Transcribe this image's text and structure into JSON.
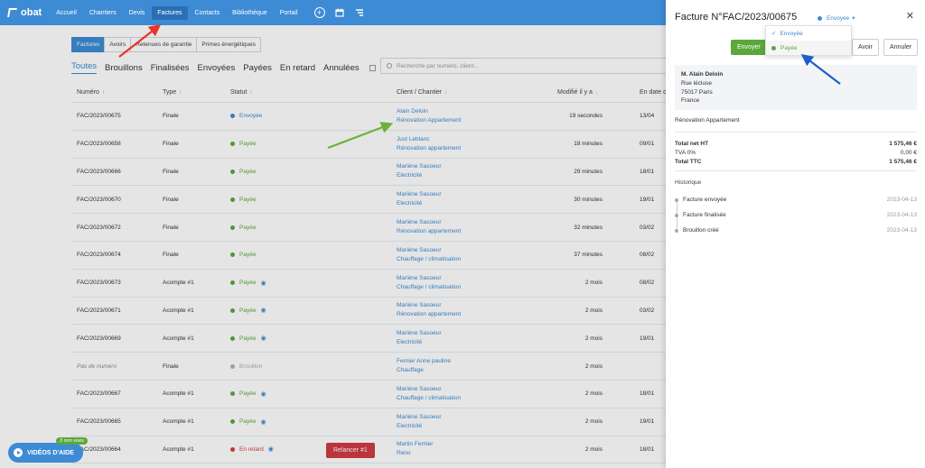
{
  "nav": {
    "logo": "obat",
    "items": [
      "Accueil",
      "Chantiers",
      "Devis",
      "Factures",
      "Contacts",
      "Bibliothèque",
      "Portail"
    ],
    "active_index": 3,
    "icons": [
      "plus-circle-icon",
      "calendar-icon",
      "tasks-icon"
    ]
  },
  "subtabs": [
    {
      "label": "Factures",
      "active": true
    },
    {
      "label": "Avoirs",
      "active": false
    },
    {
      "label": "Retenues de garantie",
      "active": false
    },
    {
      "label": "Primes énergétiques",
      "active": false
    }
  ],
  "filters": [
    "Toutes",
    "Brouillons",
    "Finalisées",
    "Envoyées",
    "Payées",
    "En retard",
    "Annulées"
  ],
  "search": {
    "placeholder": "Recherche par numéro, client..."
  },
  "table": {
    "headers": {
      "numero": "Numéro",
      "type": "Type",
      "statut": "Statut",
      "client": "Client / Chantier",
      "modifie": "Modifié il y a",
      "date": "En date d"
    },
    "rows": [
      {
        "numero": "FAC/2023/00675",
        "type": "Finale",
        "statut": "Envoyée",
        "status_color": "#3d8bd4",
        "eye": false,
        "client": "Alain Deloin",
        "chantier": "Rénovation Appartement",
        "modifie": "19 secondes",
        "date": "13/04"
      },
      {
        "numero": "FAC/2023/00658",
        "type": "Finale",
        "statut": "Payée",
        "status_color": "#5aa83a",
        "eye": false,
        "client": "Just Leblanc",
        "chantier": "Rénovation appartement",
        "modifie": "18 minutes",
        "date": "09/01"
      },
      {
        "numero": "FAC/2023/00666",
        "type": "Finale",
        "statut": "Payée",
        "status_color": "#5aa83a",
        "eye": false,
        "client": "Mariène Sasoeur",
        "chantier": "Electricité",
        "modifie": "29 minutes",
        "date": "18/01"
      },
      {
        "numero": "FAC/2023/00670",
        "type": "Finale",
        "statut": "Payée",
        "status_color": "#5aa83a",
        "eye": false,
        "client": "Mariène Sasoeur",
        "chantier": "Electricité",
        "modifie": "30 minutes",
        "date": "19/01"
      },
      {
        "numero": "FAC/2023/00672",
        "type": "Finale",
        "statut": "Payée",
        "status_color": "#5aa83a",
        "eye": false,
        "client": "Mariène Sasoeur",
        "chantier": "Rénovation appartement",
        "modifie": "32 minutes",
        "date": "03/02"
      },
      {
        "numero": "FAC/2023/00674",
        "type": "Finale",
        "statut": "Payée",
        "status_color": "#5aa83a",
        "eye": false,
        "client": "Mariène Sasoeur",
        "chantier": "Chauffage / climatisation",
        "modifie": "37 minutes",
        "date": "08/02"
      },
      {
        "numero": "FAC/2023/00673",
        "type": "Acompte #1",
        "statut": "Payée",
        "status_color": "#5aa83a",
        "eye": true,
        "client": "Mariène Sasoeur",
        "chantier": "Chauffage / climatisation",
        "modifie": "2 mois",
        "date": "08/02"
      },
      {
        "numero": "FAC/2023/00671",
        "type": "Acompte #1",
        "statut": "Payée",
        "status_color": "#5aa83a",
        "eye": true,
        "client": "Mariène Sasoeur",
        "chantier": "Rénovation appartement",
        "modifie": "2 mois",
        "date": "03/02"
      },
      {
        "numero": "FAC/2023/00669",
        "type": "Acompte #1",
        "statut": "Payée",
        "status_color": "#5aa83a",
        "eye": true,
        "client": "Mariène Sasoeur",
        "chantier": "Electricité",
        "modifie": "2 mois",
        "date": "19/01"
      },
      {
        "numero": "Pas de numéro",
        "type": "Finale",
        "statut": "Brouillon",
        "status_color": "#b0b0b0",
        "eye": false,
        "client": "Fernier Anne pauline",
        "chantier": "Chauffage",
        "modifie": "2 mois",
        "date": ""
      },
      {
        "numero": "FAC/2023/00667",
        "type": "Acompte #1",
        "statut": "Payée",
        "status_color": "#5aa83a",
        "eye": true,
        "client": "Mariène Sasoeur",
        "chantier": "Chauffage / climatisation",
        "modifie": "2 mois",
        "date": "18/01"
      },
      {
        "numero": "FAC/2023/00665",
        "type": "Acompte #1",
        "statut": "Payée",
        "status_color": "#5aa83a",
        "eye": true,
        "client": "Mariène Sasoeur",
        "chantier": "Electricité",
        "modifie": "2 mois",
        "date": "19/01"
      },
      {
        "numero": "FAC/2023/00664",
        "type": "Acompte #1",
        "statut": "En retard",
        "status_color": "#d23a43",
        "eye": true,
        "client": "Martin Fernier",
        "chantier": "Reno",
        "modifie": "2 mois",
        "date": "18/01",
        "relancer": "Relancer #1"
      }
    ]
  },
  "drawer": {
    "title": "Facture N°FAC/2023/00675",
    "status": "Envoyée",
    "close_icon": "close-icon",
    "send_button": "Envoyer",
    "avoir_button": "Avoir",
    "annuler_button": "Annuler",
    "dropdown": [
      {
        "label": "Envoyée",
        "checked": true
      },
      {
        "label": "Payée",
        "checked": false
      }
    ],
    "address": {
      "name": "M. Alain Deloin",
      "line1": "Rue lécluse",
      "line2": "75017 Paris",
      "country": "France"
    },
    "project": "Rénovation Appartement",
    "totals": [
      {
        "label": "Total net HT",
        "value": "1 575,46 €",
        "bold": true
      },
      {
        "label": "TVA 0%",
        "value": "0,00 €",
        "bold": false
      },
      {
        "label": "Total TTC",
        "value": "1 575,46 €",
        "bold": true
      }
    ],
    "history_title": "Historique",
    "history": [
      {
        "label": "Facture envoyée",
        "date": "2023-04-13"
      },
      {
        "label": "Facture finalisée",
        "date": "2023-04-13"
      },
      {
        "label": "Brouillon créé",
        "date": "2023-04-13"
      }
    ]
  },
  "help": {
    "label": "VIDÉOS D'AIDE",
    "badge": "3 non vues"
  },
  "colors": {
    "brand": "#3d8bd4",
    "success": "#5aa83a",
    "danger": "#d23a43"
  }
}
